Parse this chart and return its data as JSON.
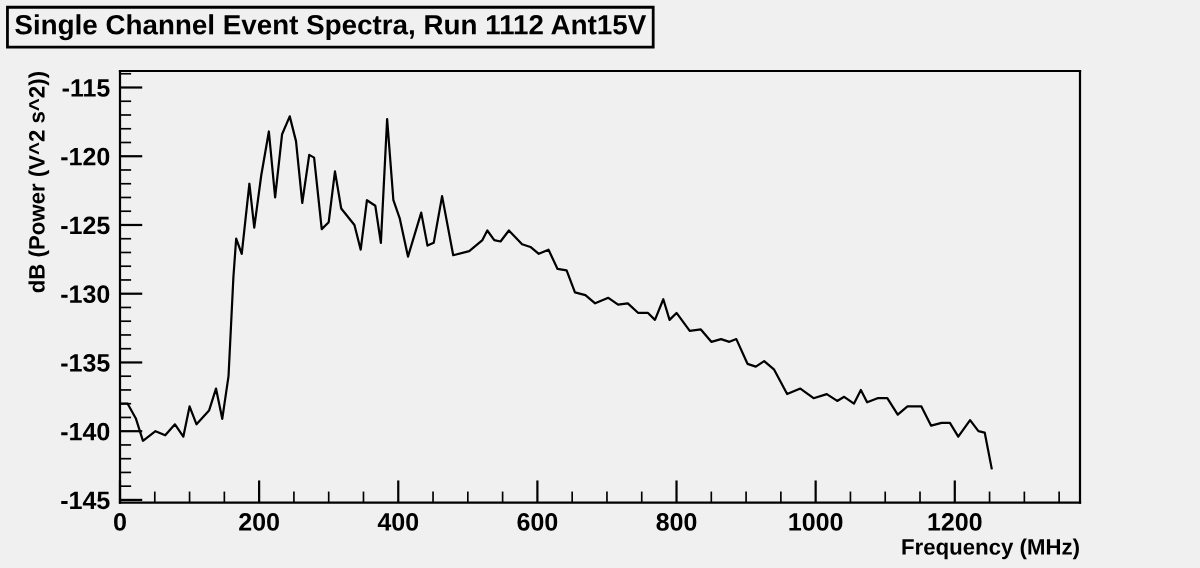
{
  "chart_data": {
    "type": "line",
    "title": "Single Channel Event Spectra, Run 1112 Ant15V",
    "xlabel": "Frequency (MHz)",
    "ylabel": "dB (Power (V^2 s^2))",
    "x": [
      0,
      11,
      23,
      33,
      51,
      65,
      79,
      91,
      100,
      110,
      128,
      138,
      147,
      156,
      163,
      167,
      175,
      186,
      193,
      203,
      214,
      223,
      233,
      244,
      253,
      262,
      272,
      279,
      290,
      300,
      309,
      318,
      337,
      346,
      355,
      367,
      375,
      384,
      393,
      402,
      414,
      433,
      442,
      451,
      463,
      479,
      502,
      521,
      528,
      538,
      547,
      559,
      578,
      590,
      602,
      616,
      629,
      642,
      654,
      669,
      683,
      702,
      716,
      730,
      745,
      759,
      769,
      781,
      790,
      800,
      819,
      835,
      850,
      864,
      876,
      886,
      902,
      914,
      926,
      940,
      959,
      978,
      997,
      1016,
      1031,
      1041,
      1055,
      1065,
      1074,
      1089,
      1103,
      1118,
      1132,
      1152,
      1166,
      1181,
      1193,
      1205,
      1222,
      1234,
      1243,
      1253
    ],
    "series": [
      {
        "color": "#000000",
        "values": [
          -138.0,
          -138.0,
          -139.1,
          -140.7,
          -140.0,
          -140.3,
          -139.5,
          -140.4,
          -138.2,
          -139.5,
          -138.5,
          -136.9,
          -139.1,
          -136.0,
          -128.8,
          -126.0,
          -127.1,
          -122.0,
          -125.2,
          -121.4,
          -118.2,
          -123.0,
          -118.4,
          -117.1,
          -118.9,
          -123.4,
          -119.9,
          -120.1,
          -125.3,
          -124.8,
          -121.1,
          -123.8,
          -125.0,
          -126.8,
          -123.2,
          -123.6,
          -126.3,
          -117.3,
          -123.2,
          -124.5,
          -127.3,
          -124.1,
          -126.5,
          -126.3,
          -122.9,
          -127.2,
          -126.9,
          -126.1,
          -125.4,
          -126.1,
          -126.2,
          -125.4,
          -126.4,
          -126.6,
          -127.1,
          -126.8,
          -128.2,
          -128.3,
          -129.9,
          -130.1,
          -130.7,
          -130.3,
          -130.8,
          -130.7,
          -131.4,
          -131.4,
          -131.9,
          -130.4,
          -131.9,
          -131.4,
          -132.7,
          -132.6,
          -133.5,
          -133.3,
          -133.5,
          -133.3,
          -135.1,
          -135.3,
          -134.9,
          -135.5,
          -137.3,
          -136.9,
          -137.6,
          -137.3,
          -137.8,
          -137.5,
          -138.0,
          -137.0,
          -137.9,
          -137.6,
          -137.6,
          -138.8,
          -138.2,
          -138.2,
          -139.6,
          -139.4,
          -139.4,
          -140.4,
          -139.2,
          -140.0,
          -140.1,
          -142.7
        ]
      }
    ],
    "xlim": [
      0,
      1380
    ],
    "ylim": [
      -145.2,
      -113.8
    ],
    "xticks": [
      0,
      200,
      400,
      600,
      800,
      1000,
      1200
    ],
    "yticks": [
      -115,
      -120,
      -125,
      -130,
      -135,
      -140,
      -145
    ],
    "grid": false,
    "legend": false
  }
}
